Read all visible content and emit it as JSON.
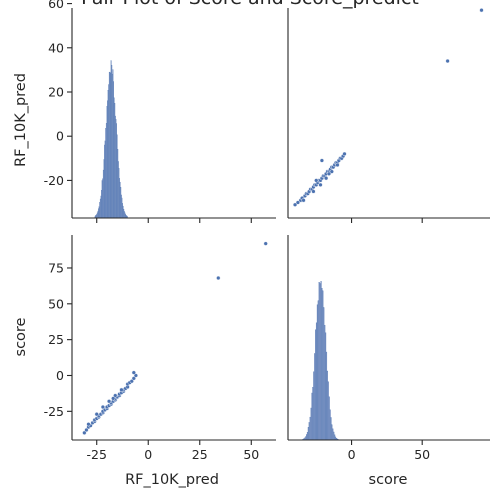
{
  "chart_data": {
    "type": "pairplot",
    "title": "Pair Plot of Score and Score_predict",
    "variables": [
      "RF_10K_pred",
      "score"
    ],
    "color": "#4c72b0",
    "histogram_fill": "#7f96c4",
    "panels": [
      {
        "id": "rf-hist",
        "type": "histogram",
        "variable": "RF_10K_pred",
        "ylabel": "RF_10K_pred",
        "ylim": [
          -37,
          58
        ],
        "yticks": [
          -20,
          0,
          20,
          40,
          60
        ],
        "xlim": [
          -37,
          62
        ],
        "hist_center": -18,
        "hist_spread": 2.6,
        "hist_range": [
          -26,
          -10
        ],
        "hist_bins": 55,
        "hist_peak_height": 0.75
      },
      {
        "id": "score-vs-rf",
        "type": "scatter",
        "x_variable": "score",
        "y_variable": "RF_10K_pred",
        "xlim": [
          -45,
          98
        ],
        "ylim": [
          -37,
          58
        ],
        "x": [
          -40,
          -38,
          -36,
          -35,
          -33,
          -32,
          -31,
          -30,
          -29,
          -28,
          -27,
          -26,
          -25,
          -24,
          -23,
          -22,
          -21,
          -20,
          -19,
          -18,
          -17,
          -16,
          -15,
          -14,
          -13,
          -12,
          -11,
          -10,
          -9,
          -8,
          -7,
          -6,
          -5,
          -34,
          -27,
          -22,
          -18,
          -14,
          -10,
          -25,
          -16,
          -21,
          68,
          92
        ],
        "y": [
          -31,
          -30,
          -29,
          -28,
          -27,
          -26,
          -26,
          -25,
          -24,
          -24,
          -23,
          -22,
          -22,
          -21,
          -20,
          -20,
          -19,
          -18,
          -18,
          -17,
          -16,
          -16,
          -15,
          -14,
          -14,
          -13,
          -12,
          -12,
          -11,
          -10,
          -10,
          -9,
          -8,
          -29,
          -25,
          -22,
          -19,
          -16,
          -13,
          -20,
          -17,
          -11,
          34,
          57
        ]
      },
      {
        "id": "rf-vs-score",
        "type": "scatter",
        "x_variable": "RF_10K_pred",
        "y_variable": "score",
        "ylabel": "score",
        "xlabel": "RF_10K_pred",
        "xlim": [
          -37,
          62
        ],
        "ylim": [
          -45,
          98
        ],
        "xticks": [
          -25,
          0,
          25,
          50
        ],
        "yticks": [
          -25,
          0,
          25,
          50,
          75
        ],
        "x": [
          -31,
          -30,
          -29,
          -28,
          -27,
          -26,
          -26,
          -25,
          -24,
          -24,
          -23,
          -22,
          -22,
          -21,
          -20,
          -20,
          -19,
          -18,
          -18,
          -17,
          -16,
          -16,
          -15,
          -14,
          -14,
          -13,
          -12,
          -12,
          -11,
          -10,
          -10,
          -9,
          -8,
          -7,
          -6,
          -29,
          -25,
          -22,
          -19,
          -16,
          -13,
          -17,
          -7,
          34,
          57
        ],
        "y": [
          -40,
          -38,
          -36,
          -35,
          -33,
          -32,
          -31,
          -30,
          -29,
          -28,
          -27,
          -26,
          -25,
          -24,
          -23,
          -22,
          -21,
          -20,
          -19,
          -18,
          -17,
          -16,
          -15,
          -14,
          -13,
          -12,
          -11,
          -10,
          -9,
          -8,
          -6,
          -5,
          -4,
          -2,
          0,
          -34,
          -27,
          -22,
          -18,
          -14,
          -10,
          -16,
          2,
          68,
          92
        ]
      },
      {
        "id": "score-hist",
        "type": "histogram",
        "variable": "score",
        "xlabel": "score",
        "xlim": [
          -45,
          98
        ],
        "xticks": [
          0,
          50
        ],
        "hist_center": -22,
        "hist_spread": 3.8,
        "hist_range": [
          -36,
          -4
        ],
        "hist_bins": 50,
        "hist_peak_height": 0.82
      }
    ]
  }
}
